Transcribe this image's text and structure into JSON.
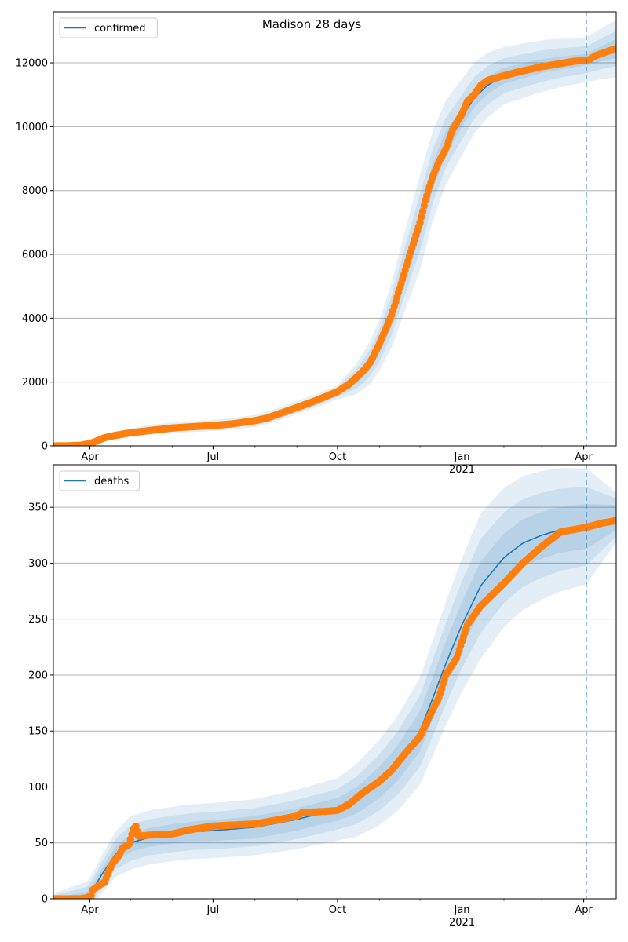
{
  "title": "Madison 28 days",
  "chart_data": [
    {
      "type": "line",
      "title": "Madison 28 days",
      "legend": {
        "placement": "top-left",
        "entries": [
          "confirmed"
        ]
      },
      "line_color": "#1f77b4",
      "point_color": "#ff7f0e",
      "band_color": "#1f77b4",
      "grid": {
        "y": true,
        "x": false
      },
      "xlim": [
        "2020-03-05",
        "2021-04-25"
      ],
      "ylim": [
        0,
        13600
      ],
      "x_ticks": [
        {
          "date": "2020-04-01",
          "label": "Apr"
        },
        {
          "date": "2020-07-01",
          "label": "Jul"
        },
        {
          "date": "2020-10-01",
          "label": "Oct"
        },
        {
          "date": "2021-01-01",
          "label": "Jan"
        },
        {
          "date": "2021-04-01",
          "label": "Apr"
        }
      ],
      "x_year_label": {
        "date": "2021-01-01",
        "label": "2021"
      },
      "y_ticks": [
        0,
        2000,
        4000,
        6000,
        8000,
        10000,
        12000
      ],
      "forecast_date": "2021-04-03",
      "model_curve": [
        [
          "2020-03-05",
          0
        ],
        [
          "2020-03-20",
          5
        ],
        [
          "2020-03-27",
          20
        ],
        [
          "2020-04-03",
          120
        ],
        [
          "2020-04-10",
          230
        ],
        [
          "2020-04-20",
          340
        ],
        [
          "2020-05-01",
          420
        ],
        [
          "2020-05-15",
          510
        ],
        [
          "2020-06-01",
          570
        ],
        [
          "2020-06-15",
          600
        ],
        [
          "2020-07-01",
          640
        ],
        [
          "2020-07-15",
          690
        ],
        [
          "2020-08-01",
          780
        ],
        [
          "2020-08-15",
          940
        ],
        [
          "2020-09-01",
          1200
        ],
        [
          "2020-09-15",
          1400
        ],
        [
          "2020-10-01",
          1680
        ],
        [
          "2020-10-15",
          2100
        ],
        [
          "2020-10-25",
          2600
        ],
        [
          "2020-11-01",
          3150
        ],
        [
          "2020-11-10",
          4100
        ],
        [
          "2020-11-20",
          5500
        ],
        [
          "2020-12-01",
          7000
        ],
        [
          "2020-12-10",
          8400
        ],
        [
          "2020-12-20",
          9500
        ],
        [
          "2021-01-01",
          10300
        ],
        [
          "2021-01-10",
          10900
        ],
        [
          "2021-01-20",
          11300
        ],
        [
          "2021-02-01",
          11600
        ],
        [
          "2021-02-15",
          11750
        ],
        [
          "2021-03-01",
          11900
        ],
        [
          "2021-03-15",
          12000
        ],
        [
          "2021-04-03",
          12100
        ],
        [
          "2021-04-15",
          12300
        ],
        [
          "2021-04-25",
          12450
        ]
      ],
      "band_widths": [
        [
          "2020-03-05",
          10,
          40,
          80
        ],
        [
          "2020-06-01",
          40,
          100,
          160
        ],
        [
          "2020-10-01",
          70,
          140,
          220
        ],
        [
          "2020-11-01",
          250,
          500,
          800
        ],
        [
          "2020-12-01",
          450,
          900,
          1500
        ],
        [
          "2021-01-01",
          300,
          700,
          1200
        ],
        [
          "2021-02-01",
          250,
          550,
          900
        ],
        [
          "2021-04-03",
          180,
          420,
          700
        ],
        [
          "2021-04-25",
          300,
          550,
          900
        ]
      ],
      "observed": [
        [
          "2020-03-05",
          0
        ],
        [
          "2020-03-15",
          5
        ],
        [
          "2020-03-25",
          20
        ],
        [
          "2020-03-30",
          60
        ],
        [
          "2020-04-03",
          100
        ],
        [
          "2020-04-08",
          190
        ],
        [
          "2020-04-12",
          260
        ],
        [
          "2020-04-20",
          330
        ],
        [
          "2020-05-01",
          410
        ],
        [
          "2020-05-15",
          480
        ],
        [
          "2020-06-01",
          560
        ],
        [
          "2020-06-15",
          600
        ],
        [
          "2020-07-01",
          640
        ],
        [
          "2020-07-15",
          690
        ],
        [
          "2020-08-01",
          790
        ],
        [
          "2020-08-10",
          870
        ],
        [
          "2020-08-15",
          950
        ],
        [
          "2020-09-01",
          1200
        ],
        [
          "2020-09-15",
          1420
        ],
        [
          "2020-10-01",
          1700
        ],
        [
          "2020-10-10",
          1950
        ],
        [
          "2020-10-20",
          2350
        ],
        [
          "2020-10-25",
          2600
        ],
        [
          "2020-11-01",
          3200
        ],
        [
          "2020-11-10",
          4100
        ],
        [
          "2020-11-15",
          4800
        ],
        [
          "2020-11-20",
          5500
        ],
        [
          "2020-11-25",
          6200
        ],
        [
          "2020-12-01",
          7000
        ],
        [
          "2020-12-05",
          7700
        ],
        [
          "2020-12-10",
          8400
        ],
        [
          "2020-12-15",
          8900
        ],
        [
          "2020-12-20",
          9300
        ],
        [
          "2020-12-25",
          9900
        ],
        [
          "2021-01-01",
          10400
        ],
        [
          "2021-01-05",
          10800
        ],
        [
          "2021-01-10",
          11000
        ],
        [
          "2021-01-15",
          11300
        ],
        [
          "2021-01-20",
          11450
        ],
        [
          "2021-02-01",
          11600
        ],
        [
          "2021-02-15",
          11750
        ],
        [
          "2021-03-01",
          11880
        ],
        [
          "2021-03-15",
          11980
        ],
        [
          "2021-03-25",
          12050
        ],
        [
          "2021-04-05",
          12100
        ],
        [
          "2021-04-10",
          12230
        ],
        [
          "2021-04-20",
          12380
        ],
        [
          "2021-04-25",
          12450
        ]
      ]
    },
    {
      "type": "line",
      "title": "",
      "legend": {
        "placement": "top-left",
        "entries": [
          "deaths"
        ]
      },
      "line_color": "#1f77b4",
      "point_color": "#ff7f0e",
      "band_color": "#1f77b4",
      "grid": {
        "y": true,
        "x": false
      },
      "xlim": [
        "2020-03-05",
        "2021-04-25"
      ],
      "ylim": [
        0,
        388
      ],
      "x_ticks": [
        {
          "date": "2020-04-01",
          "label": "Apr"
        },
        {
          "date": "2020-07-01",
          "label": "Jul"
        },
        {
          "date": "2020-10-01",
          "label": "Oct"
        },
        {
          "date": "2021-01-01",
          "label": "Jan"
        },
        {
          "date": "2021-04-01",
          "label": "Apr"
        }
      ],
      "x_year_label": {
        "date": "2021-01-01",
        "label": "2021"
      },
      "y_ticks": [
        0,
        50,
        100,
        150,
        200,
        250,
        300,
        350
      ],
      "forecast_date": "2021-04-03",
      "model_curve": [
        [
          "2020-03-05",
          0
        ],
        [
          "2020-03-30",
          2
        ],
        [
          "2020-04-03",
          8
        ],
        [
          "2020-04-10",
          22
        ],
        [
          "2020-04-20",
          40
        ],
        [
          "2020-05-01",
          50
        ],
        [
          "2020-05-15",
          55
        ],
        [
          "2020-06-01",
          58
        ],
        [
          "2020-06-15",
          60
        ],
        [
          "2020-07-01",
          61
        ],
        [
          "2020-08-01",
          64
        ],
        [
          "2020-09-01",
          71
        ],
        [
          "2020-10-01",
          80
        ],
        [
          "2020-10-15",
          88
        ],
        [
          "2020-11-01",
          104
        ],
        [
          "2020-11-15",
          122
        ],
        [
          "2020-12-01",
          150
        ],
        [
          "2020-12-10",
          178
        ],
        [
          "2020-12-20",
          210
        ],
        [
          "2021-01-01",
          245
        ],
        [
          "2021-01-15",
          280
        ],
        [
          "2021-02-01",
          305
        ],
        [
          "2021-02-15",
          318
        ],
        [
          "2021-03-01",
          325
        ],
        [
          "2021-03-15",
          330
        ],
        [
          "2021-04-03",
          333
        ],
        [
          "2021-04-25",
          341
        ]
      ],
      "band_widths": [
        [
          "2020-03-05",
          1,
          3,
          5
        ],
        [
          "2020-05-01",
          8,
          16,
          24
        ],
        [
          "2020-08-01",
          10,
          17,
          25
        ],
        [
          "2020-10-01",
          10,
          18,
          28
        ],
        [
          "2020-12-01",
          18,
          32,
          48
        ],
        [
          "2021-01-15",
          22,
          42,
          65
        ],
        [
          "2021-04-03",
          20,
          35,
          52
        ],
        [
          "2021-04-25",
          11,
          17,
          22
        ]
      ],
      "observed": [
        [
          "2020-03-05",
          0
        ],
        [
          "2020-03-15",
          0
        ],
        [
          "2020-03-25",
          0
        ],
        [
          "2020-03-30",
          1
        ],
        [
          "2020-04-02",
          3
        ],
        [
          "2020-04-03",
          8
        ],
        [
          "2020-04-08",
          12
        ],
        [
          "2020-04-12",
          15
        ],
        [
          "2020-04-15",
          25
        ],
        [
          "2020-04-18",
          32
        ],
        [
          "2020-04-22",
          38
        ],
        [
          "2020-04-25",
          45
        ],
        [
          "2020-04-30",
          49
        ],
        [
          "2020-05-03",
          62
        ],
        [
          "2020-05-05",
          65
        ],
        [
          "2020-05-07",
          56
        ],
        [
          "2020-05-15",
          57
        ],
        [
          "2020-06-01",
          58
        ],
        [
          "2020-06-15",
          62
        ],
        [
          "2020-07-01",
          65
        ],
        [
          "2020-08-01",
          67
        ],
        [
          "2020-08-15",
          70
        ],
        [
          "2020-09-01",
          74
        ],
        [
          "2020-09-05",
          77
        ],
        [
          "2020-09-20",
          78
        ],
        [
          "2020-10-01",
          79
        ],
        [
          "2020-10-10",
          85
        ],
        [
          "2020-10-20",
          95
        ],
        [
          "2020-11-01",
          105
        ],
        [
          "2020-11-10",
          115
        ],
        [
          "2020-11-20",
          130
        ],
        [
          "2020-12-01",
          145
        ],
        [
          "2020-12-10",
          168
        ],
        [
          "2020-12-15",
          180
        ],
        [
          "2020-12-20",
          200
        ],
        [
          "2020-12-28",
          215
        ],
        [
          "2021-01-01",
          230
        ],
        [
          "2021-01-05",
          245
        ],
        [
          "2021-01-15",
          262
        ],
        [
          "2021-02-01",
          282
        ],
        [
          "2021-02-15",
          300
        ],
        [
          "2021-03-01",
          315
        ],
        [
          "2021-03-15",
          328
        ],
        [
          "2021-04-03",
          332
        ],
        [
          "2021-04-15",
          336
        ],
        [
          "2021-04-25",
          338
        ]
      ]
    }
  ]
}
